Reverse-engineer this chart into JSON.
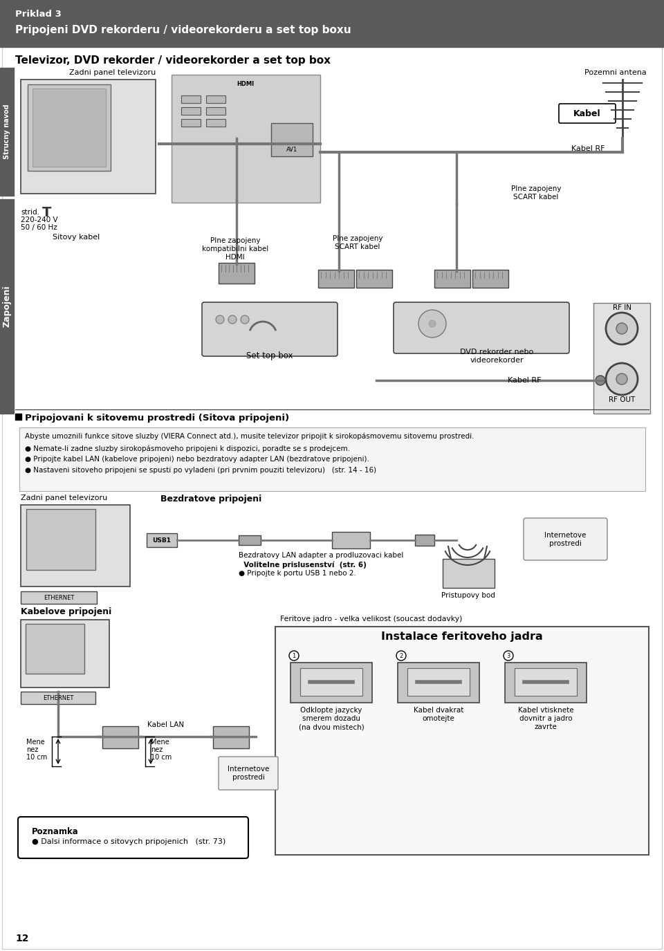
{
  "bg_color": "#ffffff",
  "header_bg": "#5a5a5a",
  "header_text1": "Priklad 3",
  "header_text2": "Pripojeni DVD rekorderu / videorekorderu a set top boxu",
  "section_title": "Televizor, DVD rekorder / videorekorder a set top box",
  "side_label1": "Strucny navod",
  "side_label2": "Zapojeni",
  "page_number": "12",
  "zadni_panel": "Zadni panel televizoru",
  "pozemni_antena": "Pozemni antena",
  "kabel": "Kabel",
  "kabel_rf_top": "Kabel RF",
  "strid": "strid.",
  "voltage1": "220-240 V",
  "voltage2": "50 / 60 Hz",
  "sitovy_kabel": "Sitovy kabel",
  "plne_hdmi1": "Plne zapojeny",
  "plne_hdmi2": "kompatibilni kabel",
  "plne_hdmi3": "HDMI",
  "plne_scart1a": "Plne zapojeny",
  "plne_scart1b": "SCART kabel",
  "plne_scart2a": "Plne zapojeny",
  "plne_scart2b": "SCART kabel",
  "set_top_box": "Set top box",
  "dvd_rekorder1": "DVD rekorder nebo",
  "dvd_rekorder2": "videorekorder",
  "rf_in": "RF IN",
  "rf_out": "RF OUT",
  "kabel_rf_bottom": "Kabel RF",
  "section2_title": "Pripojovani k sitovemu prostredi (Sitova pripojeni)",
  "section2_line1": "Abyste umoznili funkce sitove sluzby (VIERA Connect atd.), musite televizor pripojit k sirokopásmovemu sitovemu prostredi.",
  "section2_line2": "Nemate-li zadne sluzby sirokopásmoveho pripojeni k dispozici, poradte se s prodejcem.",
  "section2_line3": "Pripojte kabel LAN (kabelove pripojeni) nebo bezdratovy adapter LAN (bezdratove pripojeni).",
  "section2_line4": "Nastaveni sitoveho pripojeni se spusti po vyladeni (pri prvnim pouziti televizoru)   (str. 14 - 16)",
  "wireless_title": "Bezdratove pripojeni",
  "zadni_panel2": "Zadni panel televizoru",
  "usb1": "USB1",
  "adapter_label1": "Bezdratovy LAN adapter a prodluzovaci kabel",
  "adapter_label2": "  Volitelne prislusenství  (str. 6)",
  "adapter_label3": "Pripojte k portu USB 1 nebo 2.",
  "internetove": "Internetove\nprostredi",
  "pristupovy_bod": "Pristupovy bod",
  "kabelove_title": "Kabelove pripojeni",
  "feritove_label": "Feritove jadro - velka velikost (soucast dodavky)",
  "feritove_title": "Instalace feritoveho jadra",
  "kabel_lan": "Kabel LAN",
  "mene_nez": "Mene\nnez\n10 cm",
  "internetove2": "Internetove\nprostredi",
  "feritove_cap1a": "Odklopte jazycky",
  "feritove_cap1b": "smerem dozadu",
  "feritove_cap1c": "(na dvou mistech)",
  "feritove_cap2a": "Kabel dvakrat",
  "feritove_cap2b": "omotejte",
  "feritove_cap3a": "Kabel vtisknete",
  "feritove_cap3b": "dovnitr a jadro",
  "feritove_cap3c": "zavrte",
  "poznamka_title": "Poznamka",
  "poznamka_text": "Dalsi informace o sitovych pripojenich   (str. 73)"
}
